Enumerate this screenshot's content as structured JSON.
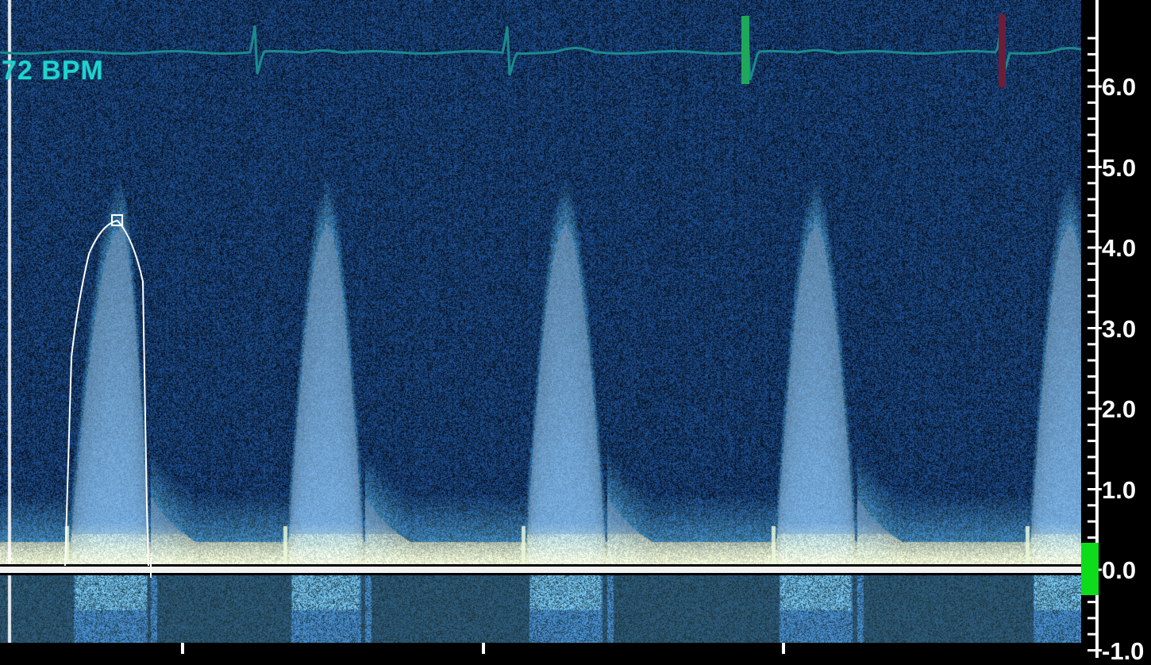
{
  "heart_rate": {
    "label": "72 BPM"
  },
  "velocity_scale": {
    "labels": [
      "6.0",
      "5.0",
      "4.0",
      "3.0",
      "2.0",
      "1.0",
      "0.0",
      "-1.0"
    ],
    "values": [
      6,
      5,
      4,
      3,
      2,
      1,
      0,
      -1
    ],
    "range": [
      -1.25,
      6.6
    ]
  },
  "trace": {
    "peak_velocity": 4.3
  },
  "colors": {
    "background": "#0a1a35",
    "spectrum_low": "#2e6fb0",
    "spectrum_high": "#e8f2a6",
    "ecg": "#1b8a8c",
    "bpm_text": "#1fd3cf",
    "baseline_marker": "#0ddc1b",
    "trace": "#ffffff"
  }
}
